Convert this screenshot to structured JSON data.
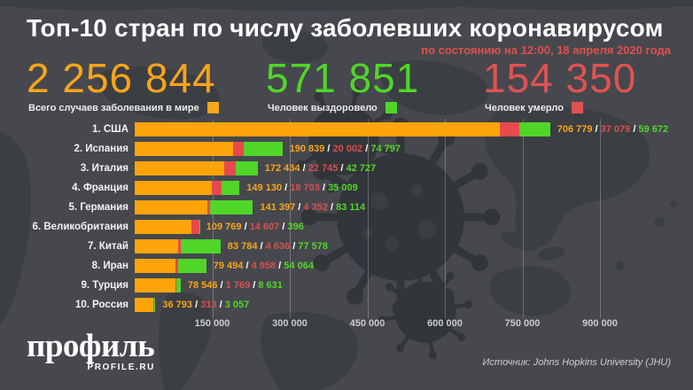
{
  "header": {
    "title": "Топ-10 стран по числу заболевших коронавирусом",
    "subtitle": "по состоянию на 12:00, 18 апреля 2020 года"
  },
  "stats": [
    {
      "id": "cases",
      "value": "2 256 844",
      "label": "Всего случаев заболевания в мире",
      "color": "#f9a51a"
    },
    {
      "id": "recovered",
      "value": "571 851",
      "label": "Человек выздоровело",
      "color": "#50d628"
    },
    {
      "id": "deaths",
      "value": "154 350",
      "label": "Человек умерло",
      "color": "#e05252"
    }
  ],
  "rows": [
    {
      "rank_label": "1. США",
      "cases": "706 779",
      "deaths": "37 079",
      "recovered": "59 672"
    },
    {
      "rank_label": "2. Испания",
      "cases": "190 839",
      "deaths": "20 002",
      "recovered": "74 797"
    },
    {
      "rank_label": "3. Италия",
      "cases": "172 434",
      "deaths": "22 745",
      "recovered": "42 727"
    },
    {
      "rank_label": "4. Франция",
      "cases": "149 130",
      "deaths": "18 703",
      "recovered": "35 009"
    },
    {
      "rank_label": "5. Германия",
      "cases": "141 397",
      "deaths": "4 352",
      "recovered": "83 114"
    },
    {
      "rank_label": "6. Великобритания",
      "cases": "109 769",
      "deaths": "14 607",
      "recovered": "396"
    },
    {
      "rank_label": "7. Китай",
      "cases": "83 784",
      "deaths": "4 636",
      "recovered": "77 578"
    },
    {
      "rank_label": "8. Иран",
      "cases": "79 494",
      "deaths": "4 958",
      "recovered": "54 064"
    },
    {
      "rank_label": "9. Турция",
      "cases": "78 546",
      "deaths": "1 769",
      "recovered": "8 631"
    },
    {
      "rank_label": "10. Россия",
      "cases": "36 793",
      "deaths": "313",
      "recovered": "3 057"
    }
  ],
  "separator": " / ",
  "chart_data": {
    "type": "bar",
    "orientation": "horizontal",
    "stacked": true,
    "title": "Топ-10 стран по числу заболевших коронавирусом",
    "subtitle": "по состоянию на 12:00, 18 апреля 2020 года",
    "categories": [
      "США",
      "Испания",
      "Италия",
      "Франция",
      "Германия",
      "Великобритания",
      "Китай",
      "Иран",
      "Турция",
      "Россия"
    ],
    "series": [
      {
        "name": "Всего случаев заболевания",
        "color": "#fca40a",
        "values": [
          706779,
          190839,
          172434,
          149130,
          141397,
          109769,
          83784,
          79494,
          78546,
          36793
        ]
      },
      {
        "name": "Человек умерло",
        "color": "#e8494c",
        "values": [
          37079,
          20002,
          22745,
          18703,
          4352,
          14607,
          4636,
          4958,
          1769,
          313
        ]
      },
      {
        "name": "Человек выздоровело",
        "color": "#50d628",
        "values": [
          59672,
          74797,
          42727,
          35009,
          83114,
          396,
          77578,
          54064,
          8631,
          3057
        ]
      }
    ],
    "totals": {
      "cases": 2256844,
      "recovered": 571851,
      "deaths": 154350
    },
    "x_ticks": [
      "150 000",
      "300 000",
      "450 000",
      "600 000",
      "750 000",
      "900 000"
    ],
    "x_tick_values": [
      150000,
      300000,
      450000,
      600000,
      750000,
      900000
    ],
    "xlim": [
      0,
      1078000
    ],
    "grid": "vertical",
    "legend_position": "top"
  },
  "footer": {
    "logo": "профиль",
    "logo_sub": "PROFILE.RU",
    "source": "Источник: Johns Hopkins University (JHU)"
  }
}
